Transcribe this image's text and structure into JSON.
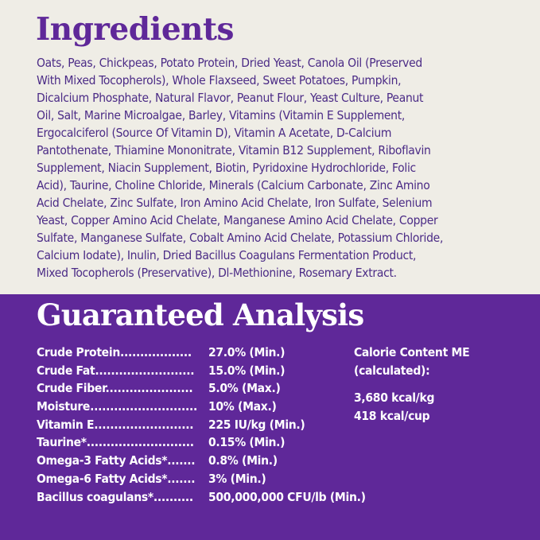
{
  "ingredients": {
    "title": "Ingredients",
    "lines": [
      "Oats, Peas, Chickpeas, Potato Protein, Dried Yeast, Canola Oil (Preserved",
      "With Mixed Tocopherols), Whole Flaxseed, Sweet Potatoes, Pumpkin,",
      "Dicalcium Phosphate, Natural Flavor, Peanut Flour, Yeast Culture, Peanut",
      "Oil, Salt, Marine Microalgae, Barley, Vitamins (Vitamin E Supplement,",
      "Ergocalciferol (Source Of Vitamin D), Vitamin A Acetate, D-Calcium",
      "Pantothenate, Thiamine Mononitrate, Vitamin B12 Supplement, Riboflavin",
      "Supplement, Niacin Supplement, Biotin, Pyridoxine Hydrochloride, Folic",
      "Acid), Taurine, Choline Chloride, Minerals (Calcium Carbonate, Zinc Amino",
      "Acid Chelate, Zinc Sulfate, Iron Amino Acid Chelate, Iron Sulfate, Selenium",
      "Yeast, Copper Amino Acid Chelate, Manganese Amino Acid Chelate, Copper",
      "Sulfate, Manganese Sulfate, Cobalt Amino Acid Chelate, Potassium Chloride,",
      "Calcium Iodate), Inulin, Dried Bacillus Coagulans Fermentation Product,",
      "Mixed Tocopherols (Preservative), Dl-Methionine, Rosemary Extract."
    ]
  },
  "analysis": {
    "title": "Guaranteed Analysis",
    "rows": [
      {
        "label": "Crude  Protein..................",
        "value": "27.0% (Min.)"
      },
      {
        "label": "Crude  Fat.........................",
        "value": "15.0% (Min.)"
      },
      {
        "label": "Crude  Fiber......................",
        "value": "5.0% (Max.)"
      },
      {
        "label": "Moisture...........................",
        "value": "10% (Max.)"
      },
      {
        "label": "Vitamin  E.........................",
        "value": "225 IU/kg (Min.)"
      },
      {
        "label": "Taurine*...........................",
        "value": "0.15% (Min.)"
      },
      {
        "label": "Omega-3 Fatty Acids*.......",
        "value": "0.8% (Min.)"
      },
      {
        "label": "Omega-6 Fatty Acids*.......",
        "value": "3% (Min.)"
      },
      {
        "label": "Bacillus  coagulans*..........",
        "value": "500,000,000 CFU/lb (Min.)"
      }
    ],
    "calorie": {
      "heading_1": "Calorie Content ME",
      "heading_2": "(calculated):",
      "per_kg": "3,680 kcal/kg",
      "per_cup": "418 kcal/cup"
    }
  },
  "colors": {
    "purple": "#5f2899",
    "cream": "#efede6",
    "text_purple": "#4b2b86"
  }
}
